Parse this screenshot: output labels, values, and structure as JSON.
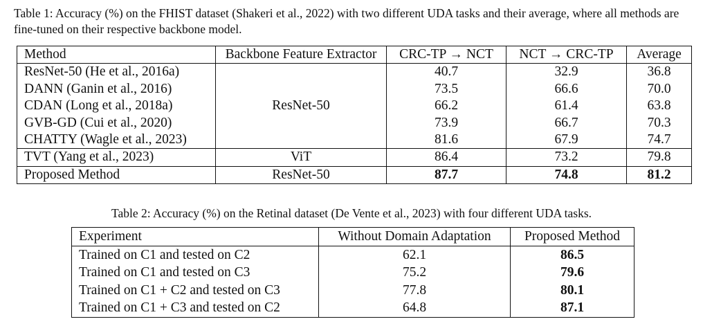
{
  "table1": {
    "caption": "Table 1: Accuracy (%) on the FHIST dataset (Shakeri et al., 2022) with two different UDA tasks and their average, where all methods are fine-tuned on their respective backbone model.",
    "headers": [
      "Method",
      "Backbone Feature Extractor",
      "CRC-TP → NCT",
      "NCT → CRC-TP",
      "Average"
    ],
    "group1_backbone": "ResNet-50",
    "group1": [
      {
        "method": "ResNet-50  (He et al., 2016a)",
        "a": "40.7",
        "b": "32.9",
        "avg": "36.8"
      },
      {
        "method": "DANN  (Ganin et al., 2016)",
        "a": "73.5",
        "b": "66.6",
        "avg": "70.0"
      },
      {
        "method": "CDAN  (Long et al., 2018a)",
        "a": "66.2",
        "b": "61.4",
        "avg": "63.8"
      },
      {
        "method": "GVB-GD  (Cui et al., 2020)",
        "a": "73.9",
        "b": "66.7",
        "avg": "70.3"
      },
      {
        "method": "CHATTY (Wagle et al., 2023)",
        "a": "81.6",
        "b": "67.9",
        "avg": "74.7"
      }
    ],
    "tvt": {
      "method": "TVT (Yang et al., 2023)",
      "backbone": "ViT",
      "a": "86.4",
      "b": "73.2",
      "avg": "79.8"
    },
    "proposed": {
      "method": "Proposed Method",
      "backbone": "ResNet-50",
      "a": "87.7",
      "b": "74.8",
      "avg": "81.2"
    }
  },
  "table2": {
    "caption": "Table 2: Accuracy (%) on the Retinal dataset (De Vente et al., 2023) with four different UDA tasks.",
    "headers": [
      "Experiment",
      "Without Domain Adaptation",
      "Proposed Method"
    ],
    "rows": [
      {
        "experiment": "Trained on C1 and tested on C2",
        "without": "62.1",
        "proposed": "86.5"
      },
      {
        "experiment": "Trained on C1 and tested on C3",
        "without": "75.2",
        "proposed": "79.6"
      },
      {
        "experiment": "Trained on C1 + C2 and tested on C3",
        "without": "77.8",
        "proposed": "80.1"
      },
      {
        "experiment": "Trained on C1 + C3 and tested on C2",
        "without": "64.8",
        "proposed": "87.1"
      }
    ]
  }
}
